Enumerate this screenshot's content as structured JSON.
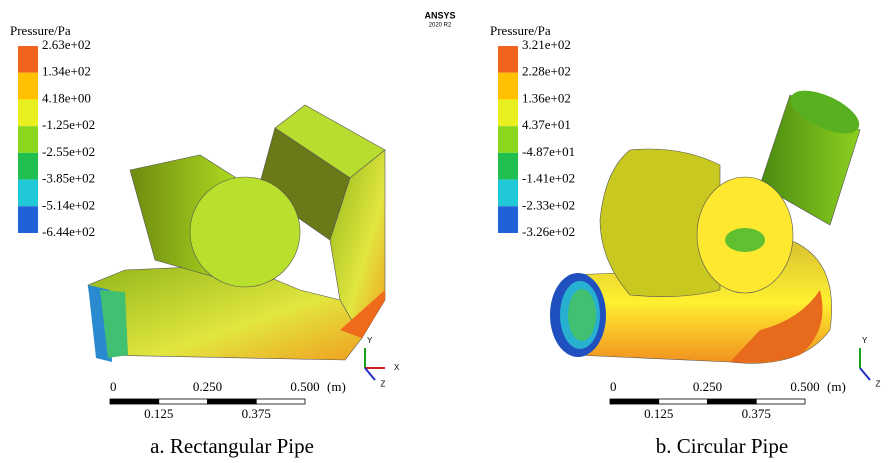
{
  "header": {
    "logo": "ANSYS",
    "version": "2020 R2"
  },
  "panels": [
    {
      "legend": {
        "title": "Pressure/Pa",
        "labels": [
          "2.63e+02",
          "1.34e+02",
          "4.18e+00",
          "-1.25e+02",
          "-2.55e+02",
          "-3.85e+02",
          "-5.14e+02",
          "-6.44e+02"
        ]
      },
      "scale": {
        "labels": [
          "0",
          "0.250",
          "0.500"
        ],
        "unit": "(m)",
        "sublabels": [
          "0.125",
          "0.375"
        ]
      },
      "axes": [
        "Y",
        "X",
        "Z"
      ],
      "caption": "a. Rectangular Pipe"
    },
    {
      "legend": {
        "title": "Pressure/Pa",
        "labels": [
          "3.21e+02",
          "2.28e+02",
          "1.36e+02",
          "4.37e+01",
          "-4.87e+01",
          "-1.41e+02",
          "-2.33e+02",
          "-3.26e+02"
        ]
      },
      "scale": {
        "labels": [
          "0",
          "0.250",
          "0.500"
        ],
        "unit": "(m)",
        "sublabels": [
          "0.125",
          "0.375"
        ]
      },
      "axes": [
        "Y",
        "Z"
      ],
      "caption": "b. Circular Pipe"
    }
  ]
}
